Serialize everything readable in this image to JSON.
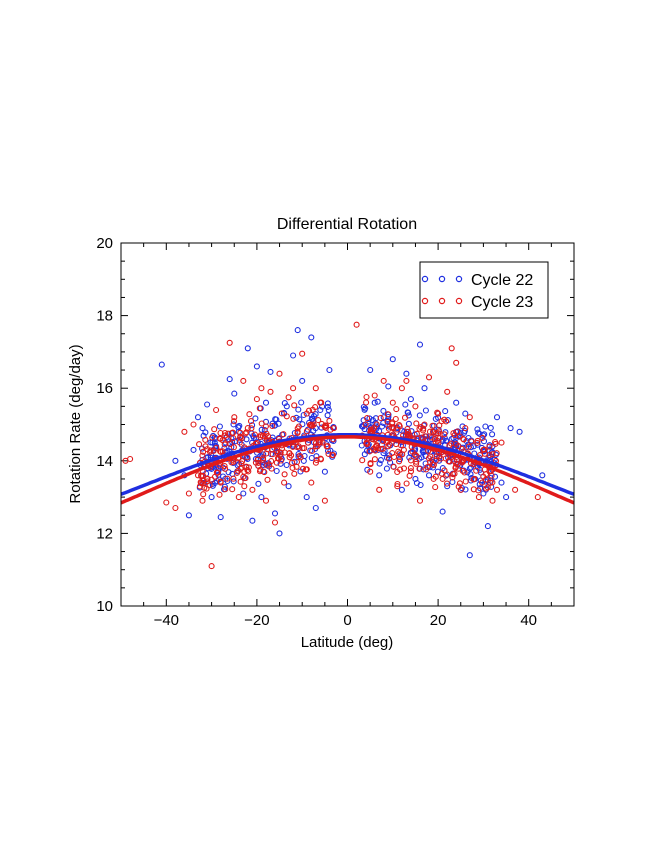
{
  "chart_data": {
    "type": "scatter",
    "title": "Differential Rotation",
    "xlabel": "Latitude (deg)",
    "ylabel": "Rotation Rate (deg/day)",
    "xlim": [
      -50,
      50
    ],
    "ylim": [
      10,
      20
    ],
    "xticks": [
      -40,
      -20,
      0,
      20,
      40
    ],
    "xtick_labels": [
      "−40",
      "−20",
      "0",
      "20",
      "40"
    ],
    "yticks": [
      10,
      12,
      14,
      16,
      18,
      20
    ],
    "ytick_labels": [
      "10",
      "12",
      "14",
      "16",
      "18",
      "20"
    ],
    "legend": {
      "placement": "top-right"
    },
    "series": [
      {
        "name": "Cycle 22",
        "color": "#1f2fe0",
        "fit": {
          "form": "A + B*sin^2(lat)",
          "A": 14.72,
          "B": -2.8
        },
        "points": [
          [
            -41,
            16.65
          ],
          [
            -38,
            14.0
          ],
          [
            -36,
            13.6
          ],
          [
            -35,
            12.5
          ],
          [
            -34,
            14.3
          ],
          [
            -33,
            15.2
          ],
          [
            -32,
            14.9
          ],
          [
            -31,
            15.55
          ],
          [
            -30,
            13.0
          ],
          [
            -29,
            14.4
          ],
          [
            -28,
            12.45
          ],
          [
            -27,
            13.5
          ],
          [
            -26,
            16.25
          ],
          [
            -25,
            15.85
          ],
          [
            -24,
            14.8
          ],
          [
            -23,
            13.1
          ],
          [
            -22,
            17.1
          ],
          [
            -21,
            12.35
          ],
          [
            -20,
            16.6
          ],
          [
            -19,
            13.0
          ],
          [
            -18,
            15.6
          ],
          [
            -17,
            16.45
          ],
          [
            -16,
            12.55
          ],
          [
            -15,
            12.0
          ],
          [
            -14,
            15.3
          ],
          [
            -13,
            13.3
          ],
          [
            -12,
            16.9
          ],
          [
            -11,
            17.6
          ],
          [
            -10,
            16.2
          ],
          [
            -9,
            13.0
          ],
          [
            -8,
            17.4
          ],
          [
            -7,
            12.7
          ],
          [
            -6,
            15.4
          ],
          [
            -5,
            13.7
          ],
          [
            -4,
            16.5
          ],
          [
            -3,
            14.2
          ],
          [
            5,
            16.5
          ],
          [
            6,
            15.6
          ],
          [
            7,
            13.6
          ],
          [
            8,
            15.2
          ],
          [
            9,
            16.05
          ],
          [
            10,
            16.8
          ],
          [
            11,
            14.9
          ],
          [
            12,
            13.2
          ],
          [
            13,
            16.4
          ],
          [
            14,
            15.7
          ],
          [
            15,
            13.5
          ],
          [
            16,
            17.2
          ],
          [
            17,
            16.0
          ],
          [
            18,
            13.6
          ],
          [
            19,
            14.8
          ],
          [
            20,
            15.3
          ],
          [
            21,
            12.6
          ],
          [
            22,
            13.3
          ],
          [
            23,
            14.6
          ],
          [
            24,
            15.6
          ],
          [
            25,
            13.2
          ],
          [
            26,
            15.3
          ],
          [
            27,
            11.4
          ],
          [
            28,
            14.2
          ],
          [
            29,
            13.9
          ],
          [
            30,
            13.1
          ],
          [
            31,
            12.2
          ],
          [
            32,
            14.4
          ],
          [
            33,
            15.2
          ],
          [
            34,
            13.4
          ],
          [
            35,
            13.0
          ],
          [
            36,
            14.9
          ],
          [
            38,
            14.8
          ],
          [
            43,
            13.6
          ]
        ]
      },
      {
        "name": "Cycle 23",
        "color": "#e01a1a",
        "fit": {
          "form": "A + B*sin^2(lat)",
          "A": 14.66,
          "B": -3.1
        },
        "points": [
          [
            -49,
            14.0
          ],
          [
            -48,
            14.05
          ],
          [
            -40,
            12.85
          ],
          [
            -38,
            12.7
          ],
          [
            -36,
            14.8
          ],
          [
            -35,
            13.1
          ],
          [
            -34,
            15.0
          ],
          [
            -33,
            13.6
          ],
          [
            -32,
            12.9
          ],
          [
            -31,
            13.5
          ],
          [
            -30,
            11.1
          ],
          [
            -29,
            15.4
          ],
          [
            -28,
            13.4
          ],
          [
            -27,
            14.7
          ],
          [
            -26,
            17.25
          ],
          [
            -25,
            15.2
          ],
          [
            -24,
            13.0
          ],
          [
            -23,
            16.2
          ],
          [
            -22,
            14.9
          ],
          [
            -21,
            13.2
          ],
          [
            -20,
            15.7
          ],
          [
            -19,
            16.0
          ],
          [
            -18,
            12.9
          ],
          [
            -17,
            15.9
          ],
          [
            -16,
            12.3
          ],
          [
            -15,
            16.4
          ],
          [
            -14,
            13.4
          ],
          [
            -13,
            15.75
          ],
          [
            -12,
            16.0
          ],
          [
            -11,
            14.8
          ],
          [
            -10,
            16.95
          ],
          [
            -9,
            15.3
          ],
          [
            -8,
            13.4
          ],
          [
            -7,
            16.0
          ],
          [
            -6,
            15.6
          ],
          [
            -5,
            12.9
          ],
          [
            -4,
            15.1
          ],
          [
            -3,
            14.9
          ],
          [
            2,
            17.75
          ],
          [
            4,
            15.0
          ],
          [
            5,
            13.7
          ],
          [
            6,
            15.8
          ],
          [
            7,
            13.2
          ],
          [
            8,
            16.2
          ],
          [
            9,
            14.4
          ],
          [
            10,
            15.6
          ],
          [
            11,
            13.3
          ],
          [
            12,
            16.0
          ],
          [
            13,
            16.2
          ],
          [
            14,
            13.8
          ],
          [
            15,
            15.5
          ],
          [
            16,
            12.9
          ],
          [
            17,
            15.0
          ],
          [
            18,
            16.3
          ],
          [
            19,
            13.5
          ],
          [
            20,
            15.3
          ],
          [
            21,
            13.5
          ],
          [
            22,
            15.9
          ],
          [
            23,
            17.1
          ],
          [
            24,
            16.7
          ],
          [
            25,
            13.2
          ],
          [
            26,
            14.9
          ],
          [
            27,
            15.2
          ],
          [
            28,
            13.5
          ],
          [
            29,
            13.0
          ],
          [
            30,
            14.3
          ],
          [
            32,
            12.9
          ],
          [
            33,
            13.2
          ],
          [
            34,
            14.5
          ],
          [
            37,
            13.2
          ],
          [
            42,
            13.0
          ]
        ],
        "note": "dense core of each cycle lies between |lat| 5-30 deg at 13.8-15.2 deg/day"
      }
    ]
  }
}
